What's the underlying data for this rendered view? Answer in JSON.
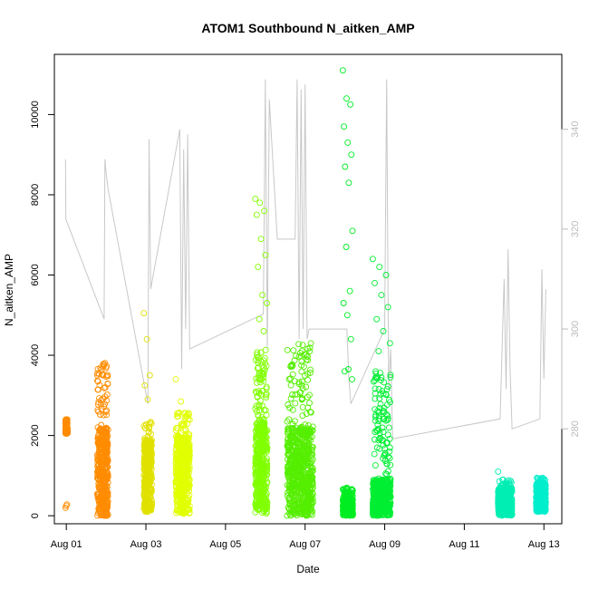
{
  "chart_data": {
    "type": "scatter",
    "title": "ATOM1 Southbound N_aitken_AMP",
    "xlabel": "Date",
    "ylabel": "N_aitken_AMP",
    "xlim_days": [
      -0.3,
      12.45
    ],
    "ylim": [
      -200,
      11500
    ],
    "x_ticks": [
      {
        "day": 0,
        "label": "Aug 01"
      },
      {
        "day": 2,
        "label": "Aug 03"
      },
      {
        "day": 4,
        "label": "Aug 05"
      },
      {
        "day": 6,
        "label": "Aug 07"
      },
      {
        "day": 8,
        "label": "Aug 09"
      },
      {
        "day": 10,
        "label": "Aug 11"
      },
      {
        "day": 12,
        "label": "Aug 13"
      }
    ],
    "y_ticks": [
      0,
      2000,
      4000,
      6000,
      8000,
      10000
    ],
    "right_axis": {
      "label": "",
      "ylim": [
        261,
        355
      ],
      "ticks": [
        280,
        300,
        320,
        340
      ],
      "color": "#bbbbbb"
    },
    "clusters": [
      {
        "day_start": -0.02,
        "day_end": 0.03,
        "base_low": 2050,
        "base_high": 2200,
        "max": 2400,
        "extra": [
          200,
          250,
          280,
          2300
        ],
        "color": "#FF8C00"
      },
      {
        "day_start": 0.78,
        "day_end": 1.05,
        "base_low": 0,
        "base_high": 2200,
        "max": 3850,
        "extra": [
          3500,
          3650,
          3200
        ],
        "color": "#FF8C00"
      },
      {
        "day_start": 1.95,
        "day_end": 2.15,
        "base_low": 100,
        "base_high": 1900,
        "max": 2350,
        "extra": [
          5050,
          4400,
          3500,
          3250,
          2900
        ],
        "color": "#E1E100"
      },
      {
        "day_start": 2.75,
        "day_end": 3.1,
        "base_low": 50,
        "base_high": 2000,
        "max": 2600,
        "extra": [
          3400,
          2850
        ],
        "color": "#E1FF00"
      },
      {
        "day_start": 4.75,
        "day_end": 5.05,
        "base_low": 50,
        "base_high": 2400,
        "max": 4200,
        "extra": [
          7900,
          7800,
          7600,
          7500,
          6900,
          6500,
          6200,
          5500,
          5300,
          4900,
          4600
        ],
        "color": "#80FF00"
      },
      {
        "day_start": 5.55,
        "day_end": 6.2,
        "base_low": 0,
        "base_high": 2200,
        "max": 4300,
        "extra": [
          2350,
          2100
        ],
        "color": "#55EE00"
      },
      {
        "day_start": 6.95,
        "day_end": 7.2,
        "base_low": 0,
        "base_high": 400,
        "max": 700,
        "extra": [
          11100,
          10400,
          10250,
          9700,
          9300,
          9000,
          8700,
          8300,
          7100,
          6700,
          5600,
          5300,
          5000,
          4400,
          3600,
          3650,
          3400
        ],
        "color": "#00EE22"
      },
      {
        "day_start": 7.7,
        "day_end": 8.15,
        "base_low": 0,
        "base_high": 900,
        "max": 3700,
        "extra": [
          6400,
          6200,
          6000,
          5800,
          5500,
          5200,
          4900,
          4600,
          4300,
          4100
        ],
        "color": "#00EE33"
      },
      {
        "day_start": 10.85,
        "day_end": 11.2,
        "base_low": 0,
        "base_high": 700,
        "max": 900,
        "extra": [
          1100
        ],
        "color": "#00EEB4"
      },
      {
        "day_start": 11.8,
        "day_end": 12.05,
        "base_low": 100,
        "base_high": 800,
        "max": 950,
        "extra": [],
        "color": "#00EECC"
      }
    ],
    "secondary_line": [
      [
        -0.02,
        334
      ],
      [
        -0.01,
        322
      ],
      [
        0.95,
        302
      ],
      [
        0.97,
        334
      ],
      [
        0.99,
        332
      ],
      [
        1.05,
        328
      ],
      [
        2.05,
        285
      ],
      [
        2.08,
        338
      ],
      [
        2.12,
        308
      ],
      [
        2.85,
        340
      ],
      [
        2.9,
        292
      ],
      [
        2.95,
        336
      ],
      [
        3.0,
        300
      ],
      [
        3.05,
        339
      ],
      [
        3.1,
        296
      ],
      [
        4.95,
        303
      ],
      [
        5.0,
        350
      ],
      [
        5.05,
        296
      ],
      [
        5.1,
        346
      ],
      [
        5.3,
        318
      ],
      [
        5.75,
        318
      ],
      [
        5.8,
        350
      ],
      [
        5.85,
        298
      ],
      [
        5.9,
        348
      ],
      [
        5.95,
        300
      ],
      [
        6.0,
        349
      ],
      [
        6.05,
        298
      ],
      [
        6.1,
        300
      ],
      [
        7.05,
        300
      ],
      [
        7.1,
        290
      ],
      [
        7.15,
        285
      ],
      [
        8.0,
        300
      ],
      [
        8.05,
        350
      ],
      [
        8.1,
        288
      ],
      [
        8.15,
        296
      ],
      [
        8.2,
        278
      ],
      [
        10.9,
        282
      ],
      [
        11.0,
        310
      ],
      [
        11.05,
        288
      ],
      [
        11.1,
        316
      ],
      [
        11.15,
        292
      ],
      [
        11.2,
        280
      ],
      [
        11.9,
        282
      ],
      [
        11.95,
        312
      ],
      [
        12.0,
        290
      ],
      [
        12.05,
        308
      ]
    ]
  }
}
